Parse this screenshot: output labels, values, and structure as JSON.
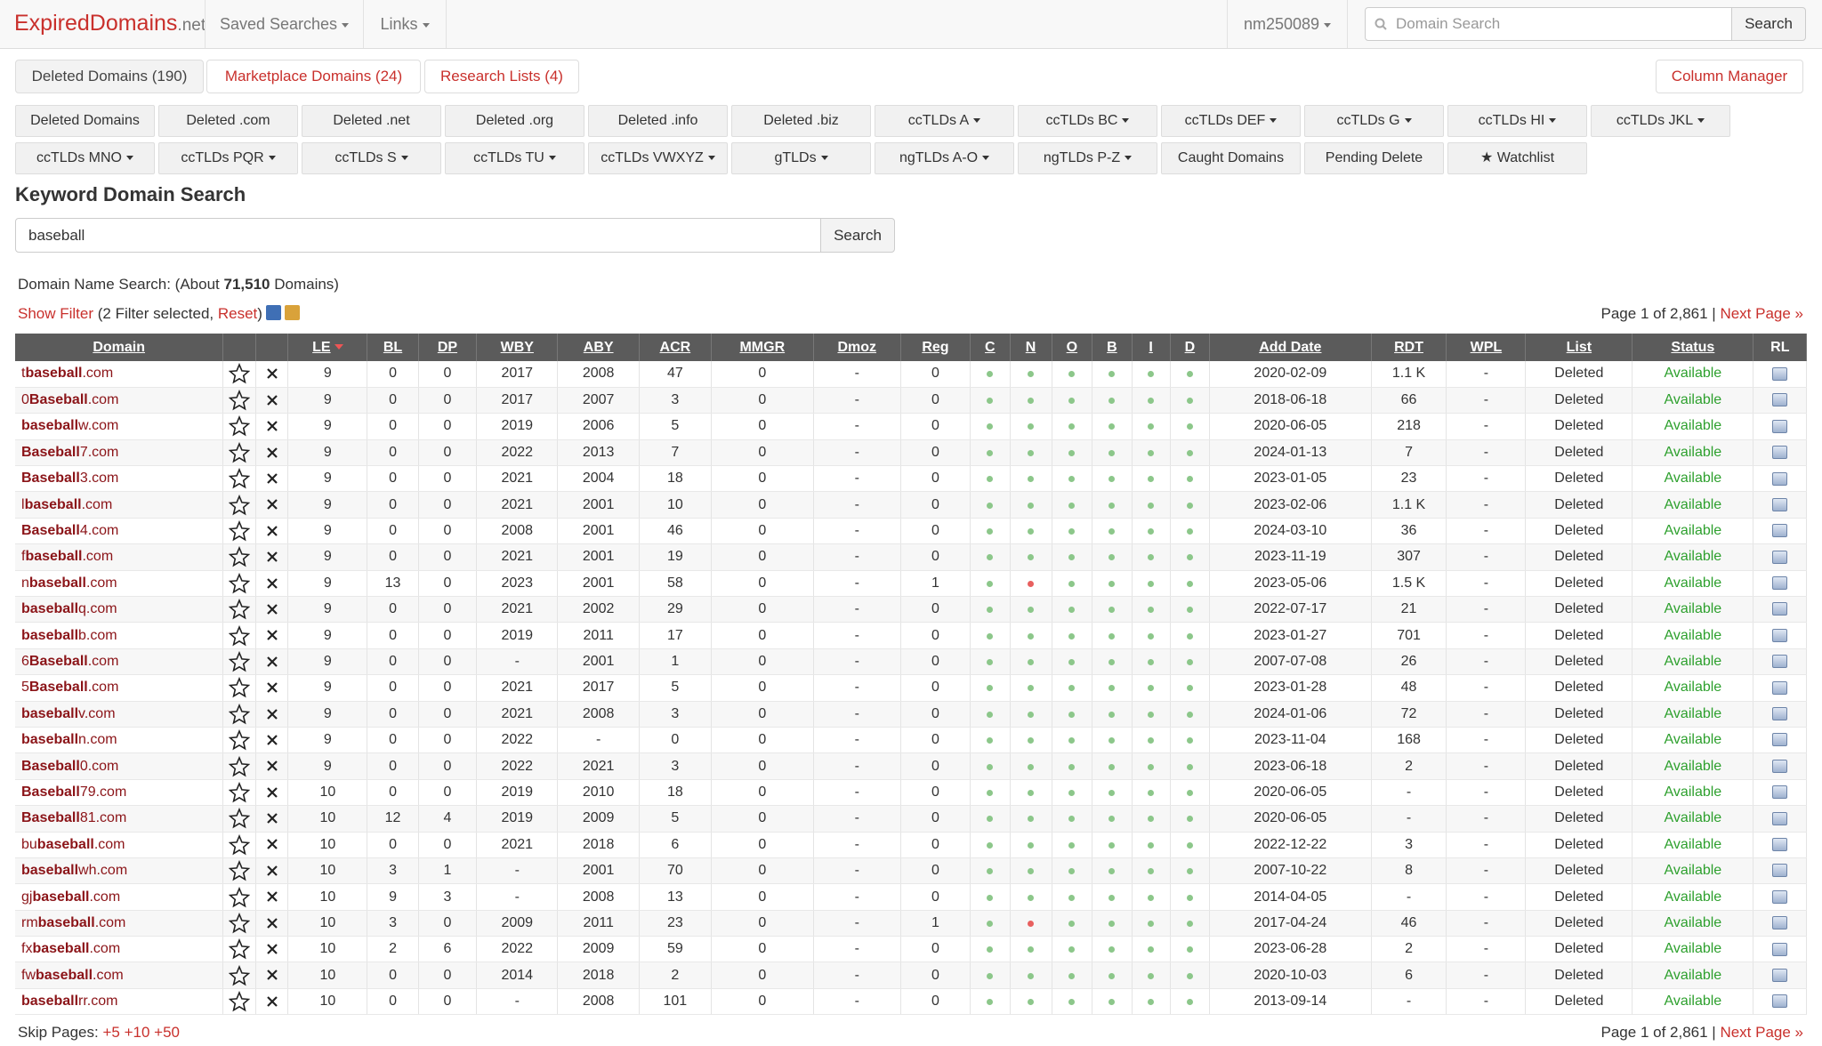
{
  "header": {
    "logo": "ExpiredDomains",
    "logo_tld": ".net",
    "nav": [
      "Saved Searches",
      "Links"
    ],
    "user": "nm250089",
    "search_placeholder": "Domain Search",
    "search_button": "Search"
  },
  "tabs": [
    "Deleted Domains (190)",
    "Marketplace Domains (24)",
    "Research Lists (4)"
  ],
  "column_manager": "Column Manager",
  "filters": [
    {
      "label": "Deleted Domains",
      "dropdown": false
    },
    {
      "label": "Deleted .com",
      "dropdown": false
    },
    {
      "label": "Deleted .net",
      "dropdown": false
    },
    {
      "label": "Deleted .org",
      "dropdown": false
    },
    {
      "label": "Deleted .info",
      "dropdown": false
    },
    {
      "label": "Deleted .biz",
      "dropdown": false
    },
    {
      "label": "ccTLDs A",
      "dropdown": true
    },
    {
      "label": "ccTLDs BC",
      "dropdown": true
    },
    {
      "label": "ccTLDs DEF",
      "dropdown": true
    },
    {
      "label": "ccTLDs G",
      "dropdown": true
    },
    {
      "label": "ccTLDs HI",
      "dropdown": true
    },
    {
      "label": "ccTLDs JKL",
      "dropdown": true
    },
    {
      "label": "ccTLDs MNO",
      "dropdown": true
    },
    {
      "label": "ccTLDs PQR",
      "dropdown": true
    },
    {
      "label": "ccTLDs S",
      "dropdown": true
    },
    {
      "label": "ccTLDs TU",
      "dropdown": true
    },
    {
      "label": "ccTLDs VWXYZ",
      "dropdown": true
    },
    {
      "label": "gTLDs",
      "dropdown": true
    },
    {
      "label": "ngTLDs A-O",
      "dropdown": true
    },
    {
      "label": "ngTLDs P-Z",
      "dropdown": true
    },
    {
      "label": "Caught Domains",
      "dropdown": false
    },
    {
      "label": "Pending Delete",
      "dropdown": false
    },
    {
      "label": "★ Watchlist",
      "dropdown": false
    }
  ],
  "search": {
    "title": "Keyword Domain Search",
    "value": "baseball",
    "button": "Search"
  },
  "summary": {
    "prefix": "Domain Name Search: (About ",
    "count": "71,510",
    "suffix": " Domains)"
  },
  "filter_line": {
    "show": "Show Filter",
    "note": " (2 Filter selected, ",
    "reset": "Reset",
    "close": ")"
  },
  "pager": {
    "info": "Page 1 of 2,861 | ",
    "next": "Next Page »",
    "skip": "Skip Pages: ",
    "skips": [
      "+5",
      "+10",
      "+50"
    ]
  },
  "table": {
    "columns": [
      "Domain",
      "LE",
      "BL",
      "DP",
      "WBY",
      "ABY",
      "ACR",
      "MMGR",
      "Dmoz",
      "Reg",
      "C",
      "N",
      "O",
      "B",
      "I",
      "D",
      "Add Date",
      "RDT",
      "WPL",
      "List",
      "Status",
      "RL"
    ],
    "rows": [
      {
        "cells": [
          "tbaseball.com",
          9,
          0,
          0,
          2017,
          2008,
          47,
          0,
          "-",
          0,
          "2020-02-09",
          "1.1 K",
          "-",
          "Deleted",
          "Available"
        ],
        "dots": "gggggg"
      },
      {
        "cells": [
          "0Baseball.com",
          9,
          0,
          0,
          2017,
          2007,
          3,
          0,
          "-",
          0,
          "2018-06-18",
          66,
          "-",
          "Deleted",
          "Available"
        ],
        "dots": "gggggg"
      },
      {
        "cells": [
          "baseballw.com",
          9,
          0,
          0,
          2019,
          2006,
          5,
          0,
          "-",
          0,
          "2020-06-05",
          218,
          "-",
          "Deleted",
          "Available"
        ],
        "dots": "gggggg"
      },
      {
        "cells": [
          "Baseball7.com",
          9,
          0,
          0,
          2022,
          2013,
          7,
          0,
          "-",
          0,
          "2024-01-13",
          7,
          "-",
          "Deleted",
          "Available"
        ],
        "dots": "gggggg"
      },
      {
        "cells": [
          "Baseball3.com",
          9,
          0,
          0,
          2021,
          2004,
          18,
          0,
          "-",
          0,
          "2023-01-05",
          23,
          "-",
          "Deleted",
          "Available"
        ],
        "dots": "gggggg"
      },
      {
        "cells": [
          "lbaseball.com",
          9,
          0,
          0,
          2021,
          2001,
          10,
          0,
          "-",
          0,
          "2023-02-06",
          "1.1 K",
          "-",
          "Deleted",
          "Available"
        ],
        "dots": "gggggg"
      },
      {
        "cells": [
          "Baseball4.com",
          9,
          0,
          0,
          2008,
          2001,
          46,
          0,
          "-",
          0,
          "2024-03-10",
          36,
          "-",
          "Deleted",
          "Available"
        ],
        "dots": "gggggg"
      },
      {
        "cells": [
          "fbaseball.com",
          9,
          0,
          0,
          2021,
          2001,
          19,
          0,
          "-",
          0,
          "2023-11-19",
          307,
          "-",
          "Deleted",
          "Available"
        ],
        "dots": "gggggg"
      },
      {
        "cells": [
          "nbaseball.com",
          9,
          13,
          0,
          2023,
          2001,
          58,
          0,
          "-",
          1,
          "2023-05-06",
          "1.5 K",
          "-",
          "Deleted",
          "Available"
        ],
        "dots": "grgggg"
      },
      {
        "cells": [
          "baseballq.com",
          9,
          0,
          0,
          2021,
          2002,
          29,
          0,
          "-",
          0,
          "2022-07-17",
          21,
          "-",
          "Deleted",
          "Available"
        ],
        "dots": "gggggg"
      },
      {
        "cells": [
          "baseballb.com",
          9,
          0,
          0,
          2019,
          2011,
          17,
          0,
          "-",
          0,
          "2023-01-27",
          701,
          "-",
          "Deleted",
          "Available"
        ],
        "dots": "gggggg"
      },
      {
        "cells": [
          "6Baseball.com",
          9,
          0,
          0,
          "-",
          2001,
          1,
          0,
          "-",
          0,
          "2007-07-08",
          26,
          "-",
          "Deleted",
          "Available"
        ],
        "dots": "gggggg"
      },
      {
        "cells": [
          "5Baseball.com",
          9,
          0,
          0,
          2021,
          2017,
          5,
          0,
          "-",
          0,
          "2023-01-28",
          48,
          "-",
          "Deleted",
          "Available"
        ],
        "dots": "gggggg"
      },
      {
        "cells": [
          "baseballv.com",
          9,
          0,
          0,
          2021,
          2008,
          3,
          0,
          "-",
          0,
          "2024-01-06",
          72,
          "-",
          "Deleted",
          "Available"
        ],
        "dots": "gggggg"
      },
      {
        "cells": [
          "baseballn.com",
          9,
          0,
          0,
          2022,
          "-",
          0,
          0,
          "-",
          0,
          "2023-11-04",
          168,
          "-",
          "Deleted",
          "Available"
        ],
        "dots": "gggggg"
      },
      {
        "cells": [
          "Baseball0.com",
          9,
          0,
          0,
          2022,
          2021,
          3,
          0,
          "-",
          0,
          "2023-06-18",
          2,
          "-",
          "Deleted",
          "Available"
        ],
        "dots": "gggggg"
      },
      {
        "cells": [
          "Baseball79.com",
          10,
          0,
          0,
          2019,
          2010,
          18,
          0,
          "-",
          0,
          "2020-06-05",
          "-",
          "-",
          "Deleted",
          "Available"
        ],
        "dots": "gggggg"
      },
      {
        "cells": [
          "Baseball81.com",
          10,
          12,
          4,
          2019,
          2009,
          5,
          0,
          "-",
          0,
          "2020-06-05",
          "-",
          "-",
          "Deleted",
          "Available"
        ],
        "dots": "gggggg"
      },
      {
        "cells": [
          "bubaseball.com",
          10,
          0,
          0,
          2021,
          2018,
          6,
          0,
          "-",
          0,
          "2022-12-22",
          3,
          "-",
          "Deleted",
          "Available"
        ],
        "dots": "gggggg"
      },
      {
        "cells": [
          "baseballwh.com",
          10,
          3,
          1,
          "-",
          2001,
          70,
          0,
          "-",
          0,
          "2007-10-22",
          8,
          "-",
          "Deleted",
          "Available"
        ],
        "dots": "gggggg"
      },
      {
        "cells": [
          "gjbaseball.com",
          10,
          9,
          3,
          "-",
          2008,
          13,
          0,
          "-",
          0,
          "2014-04-05",
          "-",
          "-",
          "Deleted",
          "Available"
        ],
        "dots": "gggggg"
      },
      {
        "cells": [
          "rmbaseball.com",
          10,
          3,
          0,
          2009,
          2011,
          23,
          0,
          "-",
          1,
          "2017-04-24",
          46,
          "-",
          "Deleted",
          "Available"
        ],
        "dots": "grgggg"
      },
      {
        "cells": [
          "fxbaseball.com",
          10,
          2,
          6,
          2022,
          2009,
          59,
          0,
          "-",
          0,
          "2023-06-28",
          2,
          "-",
          "Deleted",
          "Available"
        ],
        "dots": "gggggg"
      },
      {
        "cells": [
          "fwbaseball.com",
          10,
          0,
          0,
          2014,
          2018,
          2,
          0,
          "-",
          0,
          "2020-10-03",
          6,
          "-",
          "Deleted",
          "Available"
        ],
        "dots": "gggggg"
      },
      {
        "cells": [
          "baseballrr.com",
          10,
          0,
          0,
          "-",
          2008,
          101,
          0,
          "-",
          0,
          "2013-09-14",
          "-",
          "-",
          "Deleted",
          "Available"
        ],
        "dots": "gggggg"
      }
    ]
  }
}
